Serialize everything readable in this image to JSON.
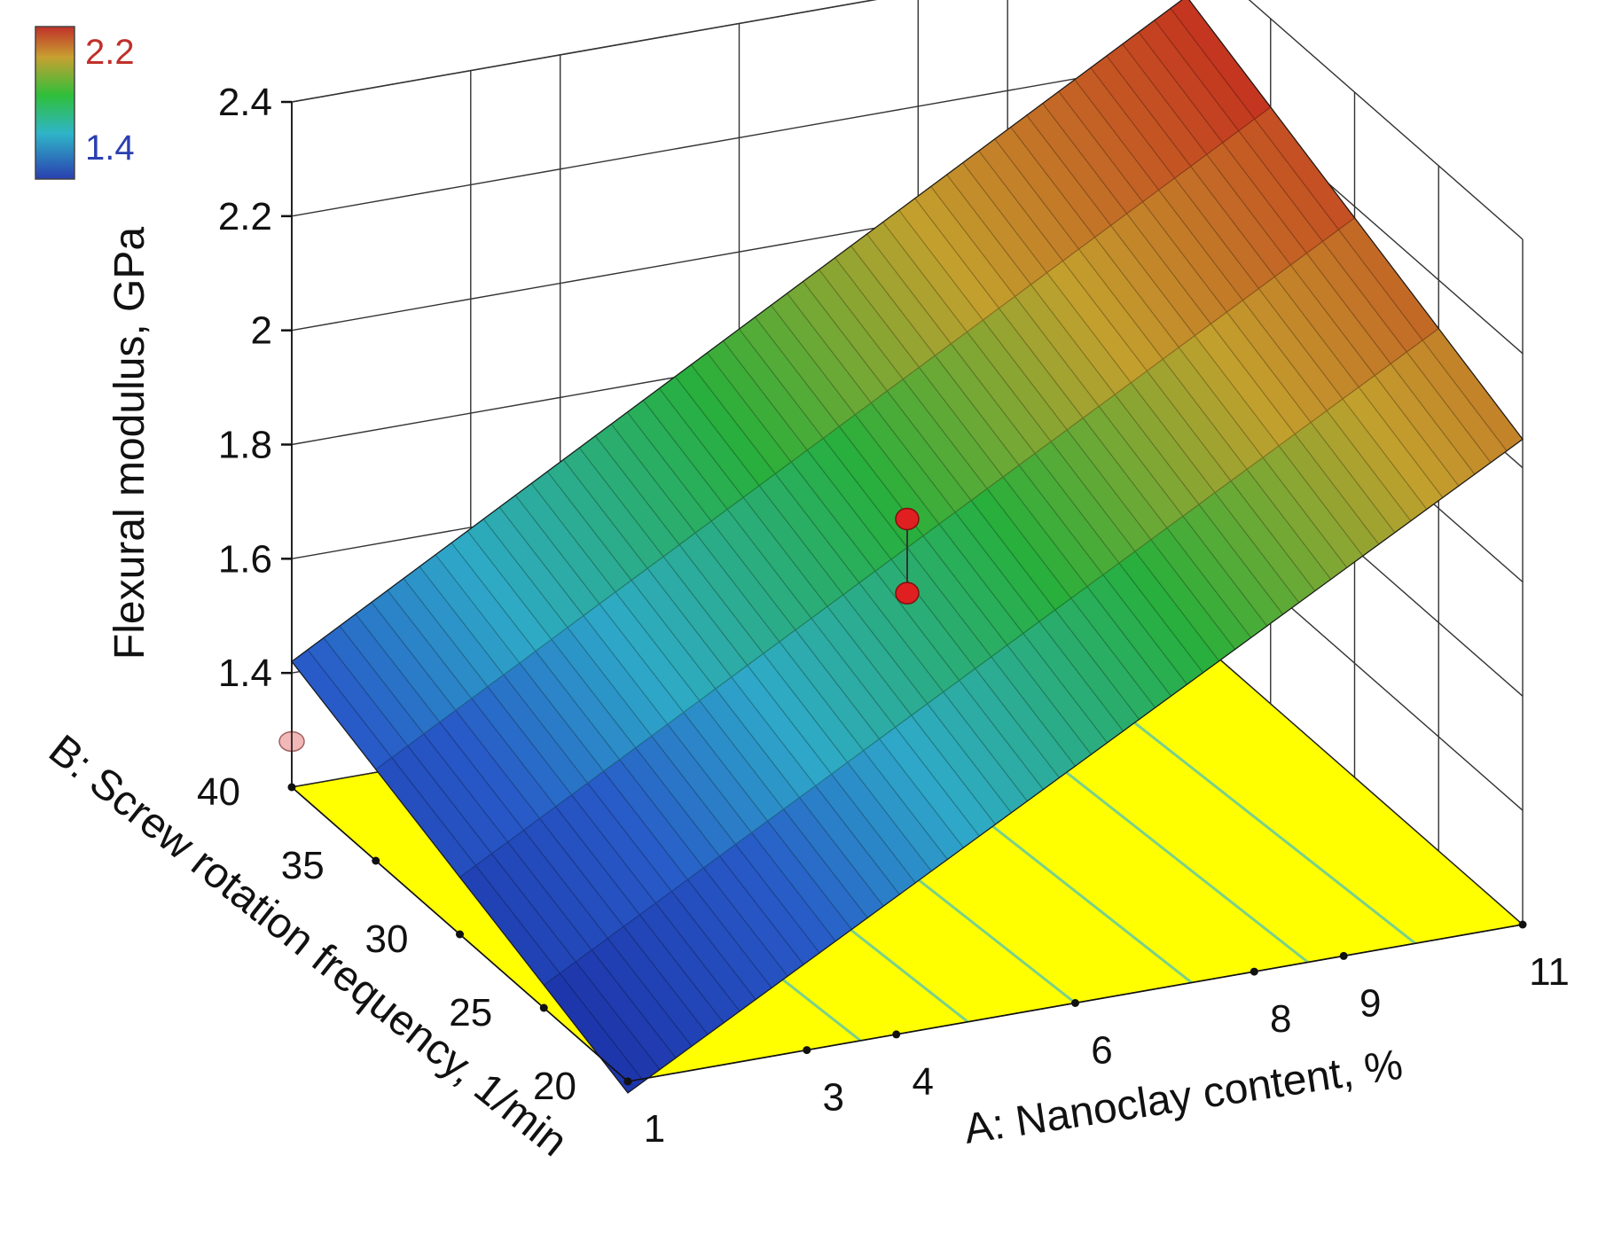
{
  "chart_data": {
    "type": "surface3d",
    "title": "",
    "z_axis": {
      "label": "Flexural modulus, GPa",
      "ticks": [
        "1.4",
        "1.6",
        "1.8",
        "2",
        "2.2",
        "2.4"
      ],
      "range": [
        1.2,
        2.4
      ]
    },
    "x_axis": {
      "label": "A: Nanoclay content, %",
      "ticks": [
        "1",
        "3",
        "4",
        "6",
        "8",
        "9",
        "11"
      ],
      "range": [
        1,
        11
      ]
    },
    "y_axis": {
      "label": "B: Screw rotation frequency, 1/min",
      "ticks": [
        "20",
        "25",
        "30",
        "35",
        "40"
      ],
      "range": [
        20,
        40
      ]
    },
    "legend": {
      "placement": "top-left",
      "high_label": "2.2",
      "low_label": "1.4",
      "high_color": "#c0302a",
      "low_color": "#2a3fb0"
    },
    "surface": {
      "corners": [
        {
          "A": 1,
          "B": 20,
          "z": 1.18
        },
        {
          "A": 11,
          "B": 20,
          "z": 2.05
        },
        {
          "A": 11,
          "B": 40,
          "z": 2.31
        },
        {
          "A": 1,
          "B": 40,
          "z": 1.42
        }
      ]
    },
    "design_points": [
      {
        "A": 6,
        "B": 30,
        "z": 1.79,
        "color": "#e02020"
      },
      {
        "A": 6,
        "B": 30,
        "z": 1.66,
        "color": "#e02020"
      },
      {
        "A": 1,
        "B": 40,
        "z": 1.28,
        "color": "#f2b8b8"
      }
    ],
    "floor_color": "#ffff00",
    "colors": {
      "grid": "#333333",
      "contour": "#7ad08a"
    }
  }
}
